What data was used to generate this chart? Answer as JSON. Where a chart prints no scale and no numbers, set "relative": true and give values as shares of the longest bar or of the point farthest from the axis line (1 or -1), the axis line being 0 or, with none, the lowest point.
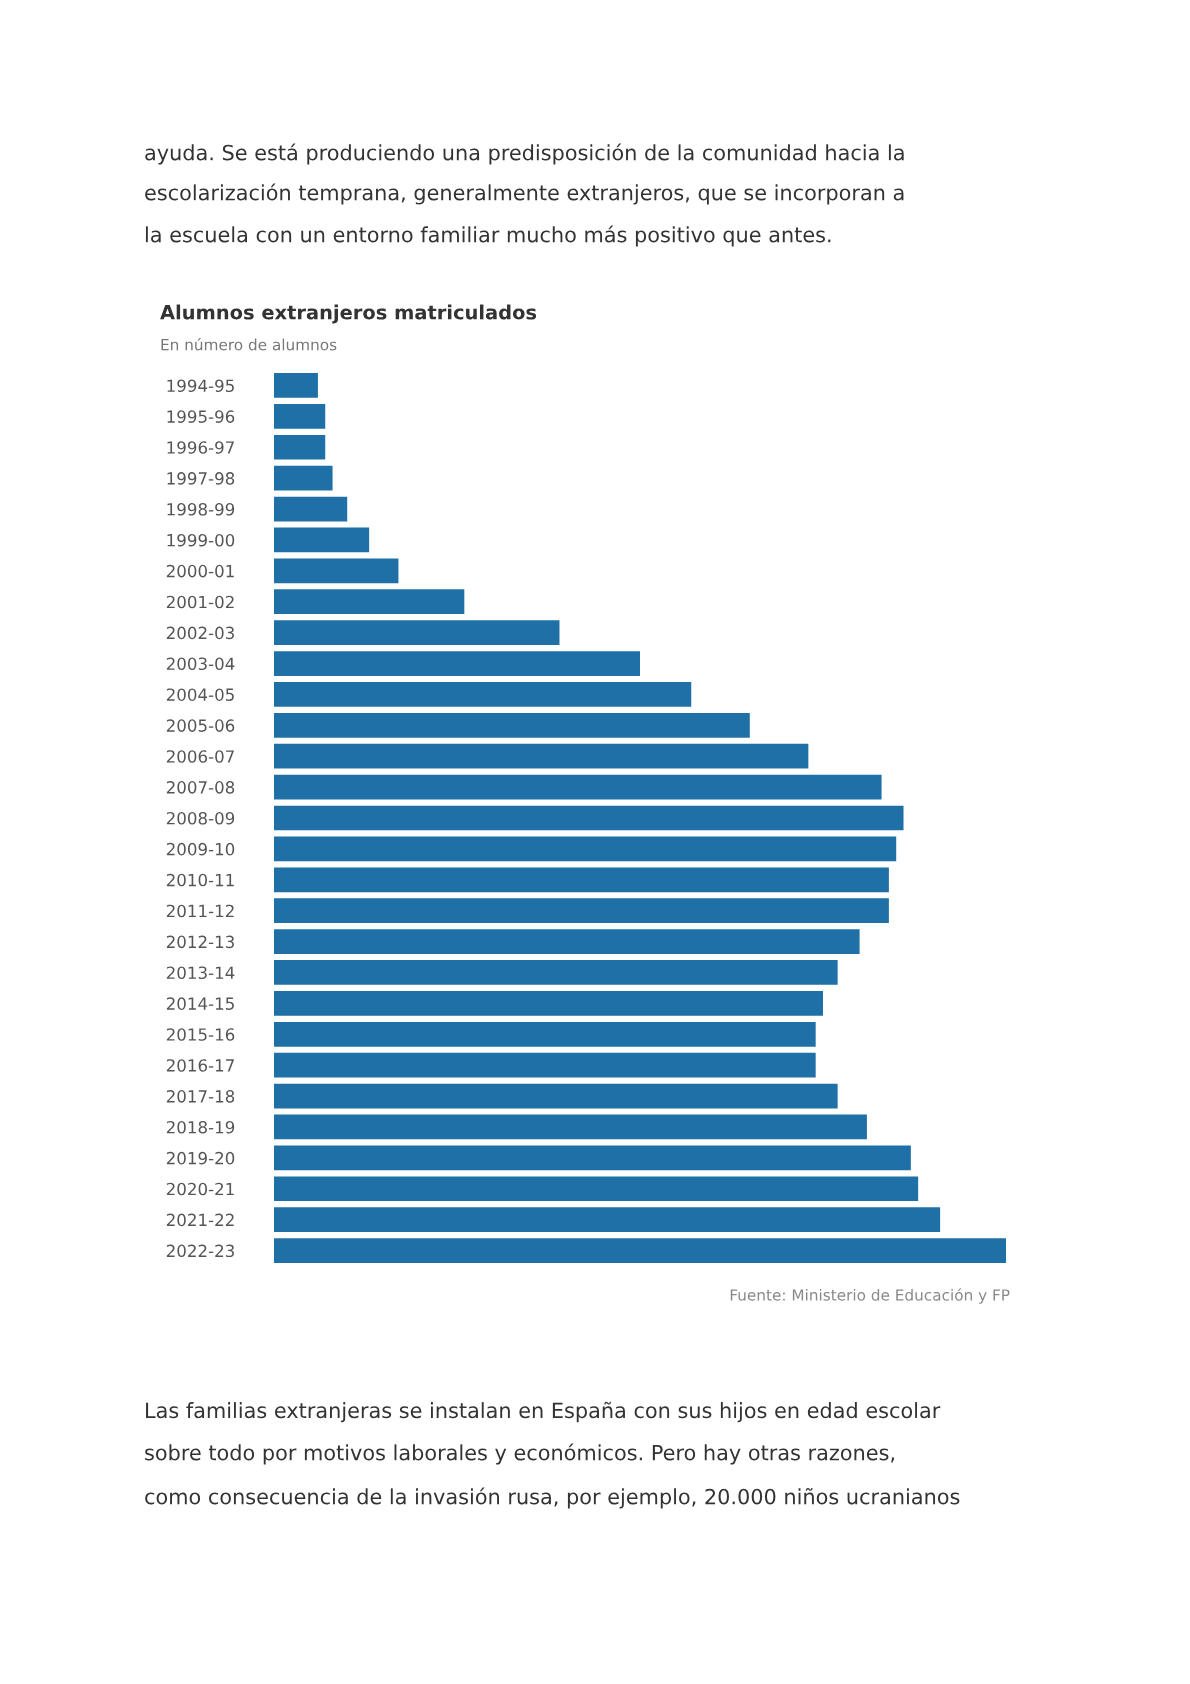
{
  "chart_data": {
    "type": "bar",
    "orientation": "horizontal",
    "relative": true,
    "title": "Alumnos extranjeros matriculados",
    "subtitle": "En número de alumnos",
    "categories": [
      "1994-95",
      "1995-96",
      "1996-97",
      "1997-98",
      "1998-99",
      "1999-00",
      "2000-01",
      "2001-02",
      "2002-03",
      "2003-04",
      "2004-05",
      "2005-06",
      "2006-07",
      "2007-08",
      "2008-09",
      "2009-10",
      "2010-11",
      "2011-12",
      "2012-13",
      "2013-14",
      "2014-15",
      "2015-16",
      "2016-17",
      "2017-18",
      "2018-19",
      "2019-20",
      "2020-21",
      "2021-22",
      "2022-23"
    ],
    "values": [
      0.06,
      0.07,
      0.07,
      0.08,
      0.1,
      0.13,
      0.17,
      0.26,
      0.39,
      0.5,
      0.57,
      0.65,
      0.73,
      0.83,
      0.86,
      0.85,
      0.84,
      0.84,
      0.8,
      0.77,
      0.75,
      0.74,
      0.74,
      0.77,
      0.81,
      0.87,
      0.88,
      0.91,
      1
    ],
    "color": "#1f70a6",
    "annotations": [
      "ayuda. Se está produciendo una predisposición de la comunidad hacia la",
      "escolarización temprana, generalmente extranjeros, que se incorporan a",
      "la escuela con un entorno familiar mucho más positivo que antes.",
      "Fuente: Ministerio de Educación y FP",
      "Las familias extranjeras se instalan en España con sus hijos en edad escolar",
      "sobre todo por motivos laborales y económicos. Pero hay otras razones,",
      "como consecuencia de la invasión rusa, por ejemplo, 20.000 niños ucranianos"
    ]
  }
}
